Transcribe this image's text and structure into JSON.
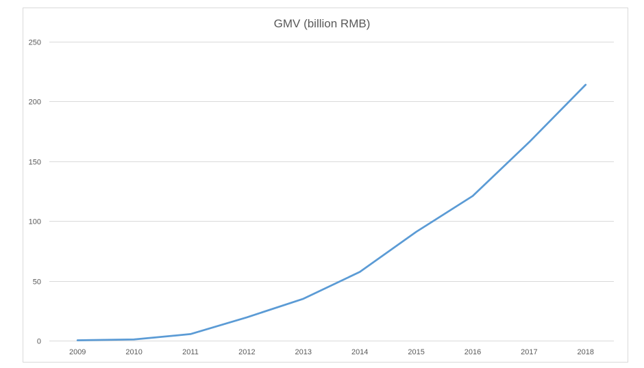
{
  "chart_data": {
    "type": "line",
    "title": "GMV (billion RMB)",
    "xlabel": "",
    "ylabel": "",
    "categories": [
      "2009",
      "2010",
      "2011",
      "2012",
      "2013",
      "2014",
      "2015",
      "2016",
      "2017",
      "2018"
    ],
    "series": [
      {
        "color": "#5b9bd5",
        "values": [
          0.3,
          1,
          5.5,
          19.5,
          35,
          57.5,
          91,
          121,
          166,
          214
        ]
      }
    ],
    "ylim": [
      0,
      250
    ],
    "yticks": [
      "0",
      "50",
      "100",
      "150",
      "200",
      "250"
    ],
    "grid": true,
    "legend": "none"
  }
}
